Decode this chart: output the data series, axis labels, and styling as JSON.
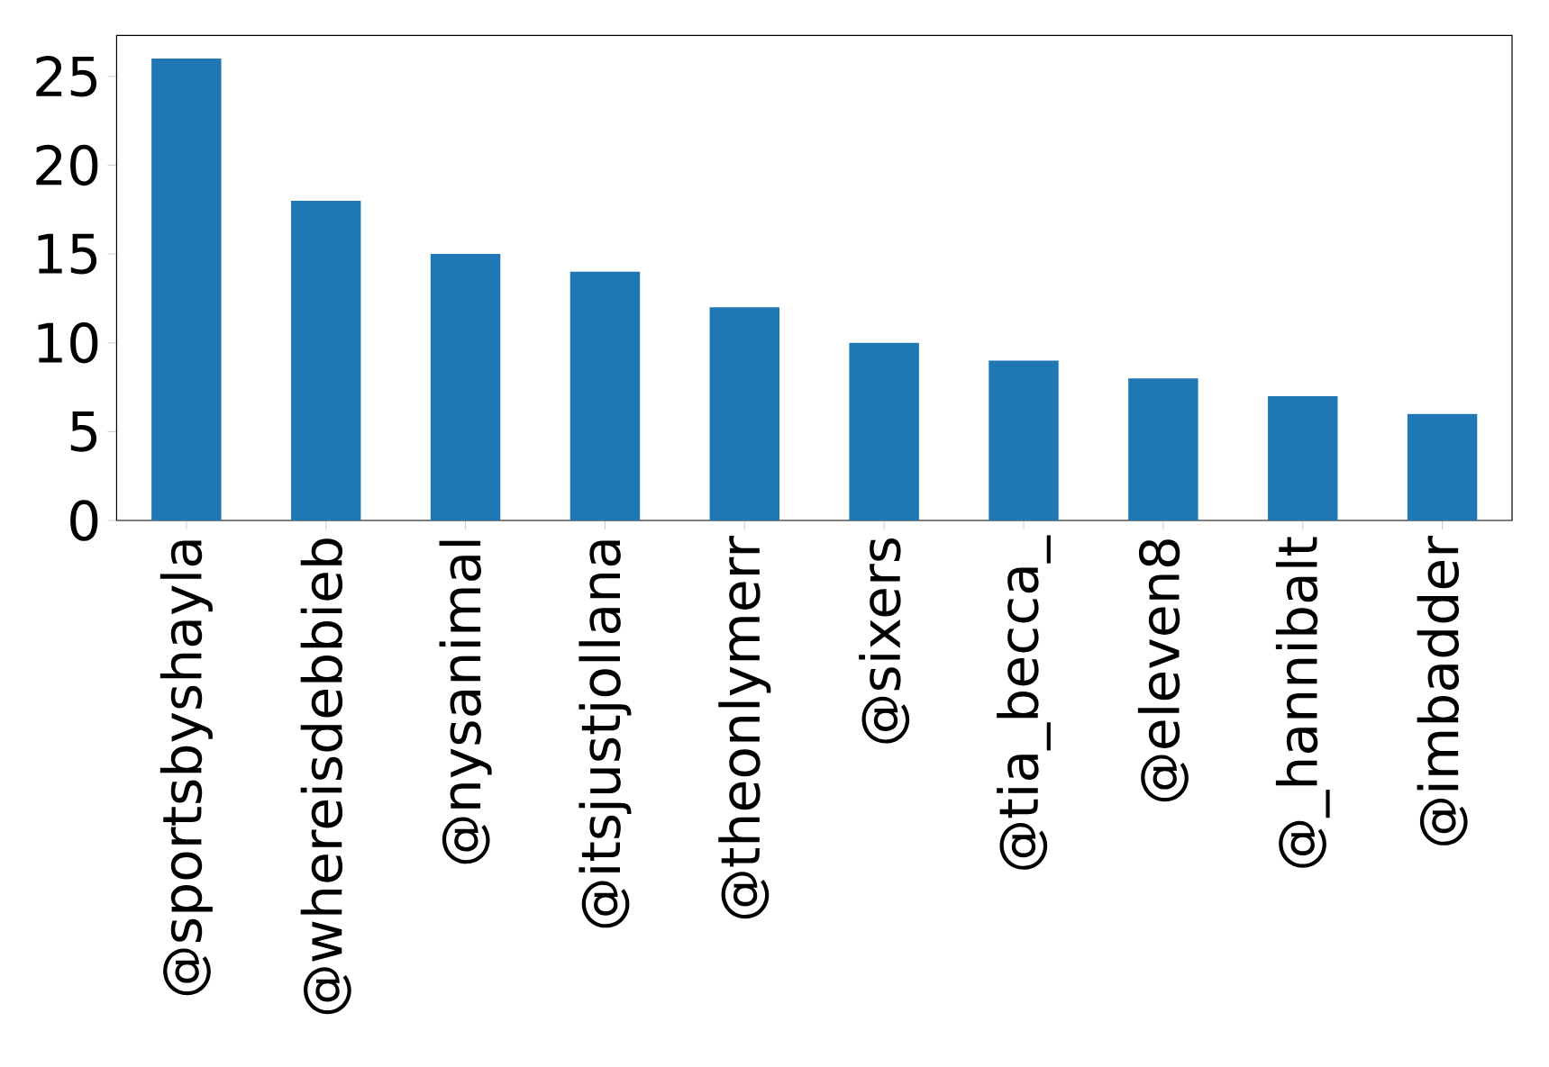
{
  "chart_data": {
    "type": "bar",
    "categories": [
      "@sportsbyshayla",
      "@whereisdebbieb",
      "@nysanimal",
      "@itsjustjollana",
      "@theonlymerr",
      "@sixers",
      "@tia_becca_",
      "@eleven8",
      "@_hannibalt",
      "@imbadder"
    ],
    "values": [
      26,
      18,
      15,
      14,
      12,
      10,
      9,
      8,
      7,
      6
    ],
    "color": "#1f77b4",
    "ylim": [
      0,
      27.3
    ],
    "yticks": [
      0,
      5,
      10,
      15,
      20,
      25
    ]
  }
}
